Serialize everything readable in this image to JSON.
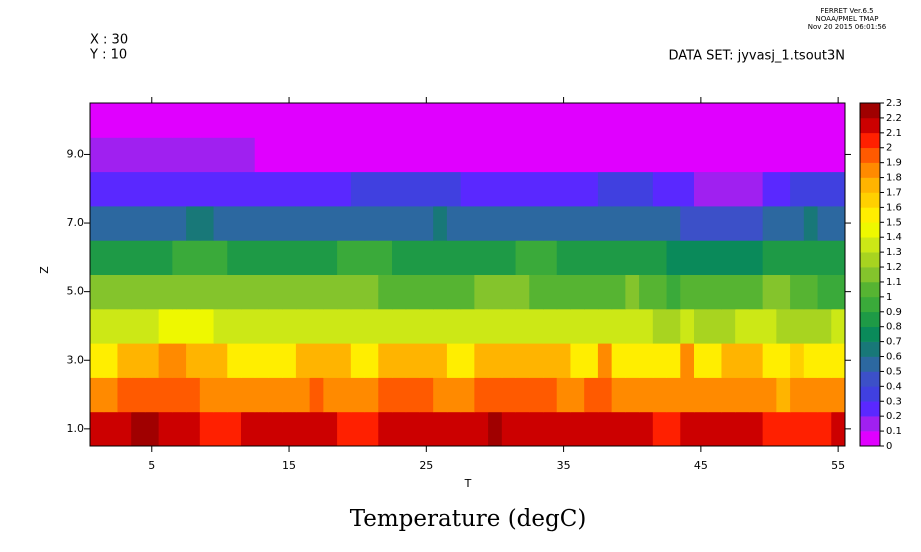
{
  "chart_data": {
    "type": "heatmap",
    "title": "Temperature (degC)",
    "x_label": "T",
    "y_label": "Z",
    "annotations": [
      "X : 30",
      "Y : 10",
      "DATA SET: jyvasj_1.tsout3N",
      "FERRET Ver.6.5",
      "NOAA/PMEL TMAP",
      "Nov 20 2015 06:01:56"
    ],
    "x": [
      1,
      2,
      3,
      4,
      5,
      6,
      7,
      8,
      9,
      10,
      11,
      12,
      13,
      14,
      15,
      16,
      17,
      18,
      19,
      20,
      21,
      22,
      23,
      24,
      25,
      26,
      27,
      28,
      29,
      30,
      31,
      32,
      33,
      34,
      35,
      36,
      37,
      38,
      39,
      40,
      41,
      42,
      43,
      44,
      45,
      46,
      47,
      48,
      49,
      50,
      51,
      52,
      53,
      54,
      55
    ],
    "y": [
      1,
      2,
      3,
      4,
      5,
      6,
      7,
      8,
      9,
      10
    ],
    "z": [
      [
        2.15,
        2.15,
        2.15,
        2.25,
        2.25,
        2.15,
        2.15,
        2.15,
        2.05,
        2.05,
        2.05,
        2.15,
        2.15,
        2.15,
        2.15,
        2.15,
        2.15,
        2.15,
        2.05,
        2.05,
        2.05,
        2.15,
        2.15,
        2.15,
        2.15,
        2.15,
        2.15,
        2.15,
        2.15,
        2.25,
        2.15,
        2.15,
        2.15,
        2.15,
        2.15,
        2.15,
        2.15,
        2.15,
        2.15,
        2.15,
        2.15,
        2.05,
        2.05,
        2.15,
        2.15,
        2.15,
        2.15,
        2.15,
        2.15,
        2.05,
        2.05,
        2.05,
        2.05,
        2.05,
        2.15
      ],
      [
        1.85,
        1.85,
        1.95,
        1.95,
        1.95,
        1.95,
        1.95,
        1.95,
        1.85,
        1.85,
        1.85,
        1.85,
        1.85,
        1.85,
        1.85,
        1.85,
        1.95,
        1.85,
        1.85,
        1.85,
        1.85,
        1.95,
        1.95,
        1.95,
        1.95,
        1.85,
        1.85,
        1.85,
        1.95,
        1.95,
        1.95,
        1.95,
        1.95,
        1.95,
        1.85,
        1.85,
        1.95,
        1.95,
        1.85,
        1.85,
        1.85,
        1.85,
        1.85,
        1.85,
        1.85,
        1.85,
        1.85,
        1.85,
        1.85,
        1.85,
        1.75,
        1.85,
        1.85,
        1.85,
        1.85
      ],
      [
        1.55,
        1.55,
        1.75,
        1.75,
        1.75,
        1.85,
        1.85,
        1.75,
        1.75,
        1.75,
        1.55,
        1.55,
        1.55,
        1.55,
        1.55,
        1.75,
        1.75,
        1.75,
        1.75,
        1.55,
        1.55,
        1.75,
        1.75,
        1.75,
        1.75,
        1.75,
        1.55,
        1.55,
        1.75,
        1.75,
        1.75,
        1.75,
        1.75,
        1.75,
        1.75,
        1.55,
        1.55,
        1.85,
        1.55,
        1.55,
        1.55,
        1.55,
        1.55,
        1.85,
        1.55,
        1.55,
        1.75,
        1.75,
        1.75,
        1.55,
        1.55,
        1.65,
        1.55,
        1.55,
        1.55
      ],
      [
        1.35,
        1.35,
        1.35,
        1.35,
        1.35,
        1.45,
        1.45,
        1.45,
        1.45,
        1.35,
        1.35,
        1.35,
        1.35,
        1.35,
        1.35,
        1.35,
        1.35,
        1.35,
        1.35,
        1.35,
        1.35,
        1.35,
        1.35,
        1.35,
        1.35,
        1.35,
        1.35,
        1.35,
        1.35,
        1.35,
        1.35,
        1.35,
        1.35,
        1.35,
        1.35,
        1.35,
        1.35,
        1.35,
        1.35,
        1.35,
        1.35,
        1.25,
        1.25,
        1.35,
        1.25,
        1.25,
        1.25,
        1.35,
        1.35,
        1.35,
        1.25,
        1.25,
        1.25,
        1.25,
        1.35
      ],
      [
        1.15,
        1.15,
        1.15,
        1.15,
        1.15,
        1.15,
        1.15,
        1.15,
        1.15,
        1.15,
        1.15,
        1.15,
        1.15,
        1.15,
        1.15,
        1.15,
        1.15,
        1.15,
        1.15,
        1.15,
        1.15,
        1.05,
        1.05,
        1.05,
        1.05,
        1.05,
        1.05,
        1.05,
        1.15,
        1.15,
        1.15,
        1.15,
        1.05,
        1.05,
        1.05,
        1.05,
        1.05,
        1.05,
        1.05,
        1.15,
        1.05,
        1.05,
        0.95,
        1.05,
        1.05,
        1.05,
        1.05,
        1.05,
        1.05,
        1.15,
        1.15,
        1.05,
        1.05,
        0.95,
        0.95
      ],
      [
        0.85,
        0.85,
        0.85,
        0.85,
        0.85,
        0.85,
        0.95,
        0.95,
        0.95,
        0.95,
        0.85,
        0.85,
        0.85,
        0.85,
        0.85,
        0.85,
        0.85,
        0.85,
        0.95,
        0.95,
        0.95,
        0.95,
        0.85,
        0.85,
        0.85,
        0.85,
        0.85,
        0.85,
        0.85,
        0.85,
        0.85,
        0.95,
        0.95,
        0.95,
        0.85,
        0.85,
        0.85,
        0.85,
        0.85,
        0.85,
        0.85,
        0.85,
        0.75,
        0.75,
        0.75,
        0.75,
        0.75,
        0.75,
        0.75,
        0.85,
        0.85,
        0.85,
        0.85,
        0.85,
        0.85
      ],
      [
        0.55,
        0.55,
        0.55,
        0.55,
        0.55,
        0.55,
        0.55,
        0.65,
        0.65,
        0.55,
        0.55,
        0.55,
        0.55,
        0.55,
        0.55,
        0.55,
        0.55,
        0.55,
        0.55,
        0.55,
        0.55,
        0.55,
        0.55,
        0.55,
        0.55,
        0.65,
        0.55,
        0.55,
        0.55,
        0.55,
        0.55,
        0.55,
        0.55,
        0.55,
        0.55,
        0.55,
        0.55,
        0.55,
        0.55,
        0.55,
        0.55,
        0.55,
        0.55,
        0.45,
        0.45,
        0.45,
        0.45,
        0.45,
        0.45,
        0.55,
        0.55,
        0.55,
        0.65,
        0.55,
        0.55
      ],
      [
        0.25,
        0.25,
        0.25,
        0.25,
        0.25,
        0.25,
        0.25,
        0.25,
        0.25,
        0.25,
        0.25,
        0.25,
        0.25,
        0.25,
        0.25,
        0.25,
        0.25,
        0.25,
        0.25,
        0.35,
        0.35,
        0.35,
        0.35,
        0.35,
        0.35,
        0.35,
        0.35,
        0.25,
        0.25,
        0.25,
        0.25,
        0.25,
        0.25,
        0.25,
        0.25,
        0.25,
        0.25,
        0.35,
        0.35,
        0.35,
        0.35,
        0.25,
        0.25,
        0.25,
        0.15,
        0.15,
        0.15,
        0.15,
        0.15,
        0.25,
        0.25,
        0.35,
        0.35,
        0.35,
        0.35
      ],
      [
        0.15,
        0.15,
        0.15,
        0.15,
        0.15,
        0.15,
        0.15,
        0.15,
        0.15,
        0.15,
        0.15,
        0.15,
        0.05,
        0.05,
        0.05,
        0.05,
        0.05,
        0.05,
        0.05,
        0.05,
        0.05,
        0.05,
        0.05,
        0.05,
        0.05,
        0.05,
        0.05,
        0.05,
        0.05,
        0.05,
        0.05,
        0.05,
        0.05,
        0.05,
        0.05,
        0.05,
        0.05,
        0.05,
        0.05,
        0.05,
        0.05,
        0.05,
        0.05,
        0.05,
        0.05,
        0.05,
        0.05,
        0.05,
        0.05,
        0.05,
        0.05,
        0.05,
        0.05,
        0.05,
        0.05
      ],
      [
        0.05,
        0.05,
        0.05,
        0.05,
        0.05,
        0.05,
        0.05,
        0.05,
        0.05,
        0.05,
        0.05,
        0.05,
        0.05,
        0.05,
        0.05,
        0.05,
        0.05,
        0.05,
        0.05,
        0.05,
        0.05,
        0.05,
        0.05,
        0.05,
        0.05,
        0.05,
        0.05,
        0.05,
        0.05,
        0.05,
        0.05,
        0.05,
        0.05,
        0.05,
        0.05,
        0.05,
        0.05,
        0.05,
        0.05,
        0.05,
        0.05,
        0.05,
        0.05,
        0.05,
        0.05,
        0.05,
        0.05,
        0.05,
        0.05,
        0.05,
        0.05,
        0.05,
        0.05,
        0.05,
        0.05
      ]
    ],
    "xlim": [
      0.5,
      55.5
    ],
    "xticks": [
      5,
      15,
      25,
      35,
      45,
      55
    ],
    "ylim": [
      0.5,
      10.5
    ],
    "yticks": [
      {
        "value": 1,
        "label": "1.0"
      },
      {
        "value": 3,
        "label": "3.0"
      },
      {
        "value": 5,
        "label": "5.0"
      },
      {
        "value": 7,
        "label": "7.0"
      },
      {
        "value": 9,
        "label": "9.0"
      }
    ],
    "colorbar": {
      "levels": [
        0,
        0.1,
        0.2,
        0.3,
        0.4,
        0.5,
        0.6,
        0.7,
        0.8,
        0.9,
        1,
        1.1,
        1.2,
        1.3,
        1.4,
        1.5,
        1.6,
        1.7,
        1.8,
        1.9,
        2,
        2.1,
        2.2,
        2.3
      ],
      "colors": [
        "#e000ff",
        "#a020f0",
        "#5a28ff",
        "#4040e0",
        "#3c50c8",
        "#2c68a0",
        "#187878",
        "#0a8a5a",
        "#1e9a46",
        "#3aaa3a",
        "#56b432",
        "#84c42c",
        "#a8d420",
        "#cce816",
        "#eef800",
        "#ffee00",
        "#ffd000",
        "#ffb400",
        "#ff8a00",
        "#ff5a00",
        "#ff2000",
        "#cc0000",
        "#a00000"
      ]
    }
  }
}
